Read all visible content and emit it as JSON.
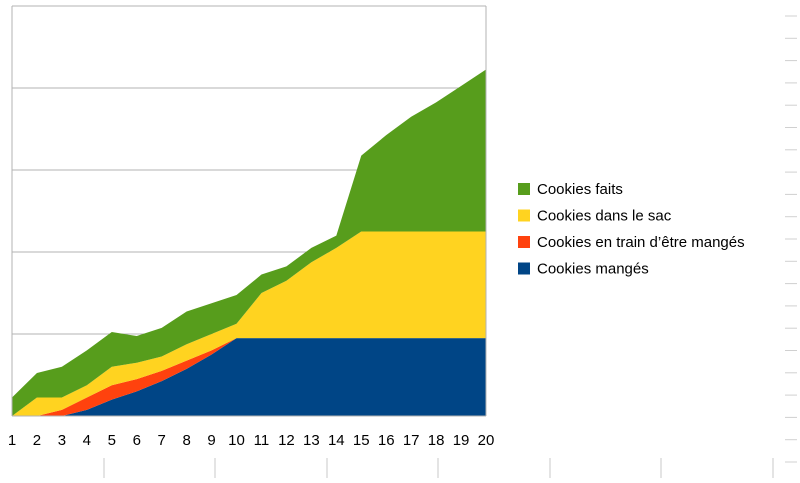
{
  "chart_data": {
    "type": "area",
    "stacked": true,
    "x": [
      1,
      2,
      3,
      4,
      5,
      6,
      7,
      8,
      9,
      10,
      11,
      12,
      13,
      14,
      15,
      16,
      17,
      18,
      19,
      20
    ],
    "ylim": [
      0,
      100
    ],
    "ytick_count": 5,
    "grid": "horizontal",
    "legend_position": "right",
    "title": "",
    "xlabel": "",
    "ylabel": "",
    "series": [
      {
        "name": "Cookies mangés",
        "color": "#004586",
        "values": [
          0,
          0,
          0,
          1.5,
          4,
          6,
          8.5,
          11.5,
          15,
          19,
          19,
          19,
          19,
          19,
          19,
          19,
          19,
          19,
          19,
          19
        ]
      },
      {
        "name": "Cookies en train d’être mangés",
        "color": "#FF420E",
        "values": [
          0,
          0,
          1.5,
          3,
          3.5,
          3,
          2.5,
          2,
          1,
          0,
          0,
          0,
          0,
          0,
          0,
          0,
          0,
          0,
          0,
          0
        ]
      },
      {
        "name": "Cookies dans le sac",
        "color": "#FFD320",
        "values": [
          0,
          4.5,
          3,
          3,
          4.5,
          4,
          3.5,
          4,
          4,
          3.5,
          11,
          14,
          18.5,
          22,
          26,
          26,
          26,
          26,
          26,
          26
        ]
      },
      {
        "name": "Cookies faits",
        "color": "#579D1C",
        "values": [
          4.5,
          6,
          7.5,
          8.5,
          8.5,
          6.5,
          7,
          8,
          7.5,
          7,
          4.5,
          3.5,
          3.5,
          3,
          18.5,
          23.5,
          28,
          31.5,
          35.5,
          39.5
        ]
      }
    ]
  }
}
